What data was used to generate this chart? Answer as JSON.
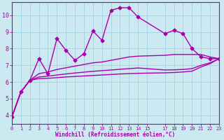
{
  "background_color": "#cce8f0",
  "grid_color": "#99cce0",
  "line_color": "#aa00aa",
  "xlabel": "Windchill (Refroidissement éolien,°C)",
  "xlabel_color": "#aa00aa",
  "tick_color": "#aa00aa",
  "xlim": [
    0,
    23
  ],
  "ylim": [
    3.5,
    10.8
  ],
  "yticks": [
    4,
    5,
    6,
    7,
    8,
    9,
    10
  ],
  "xtick_positions": [
    0,
    1,
    2,
    3,
    4,
    5,
    6,
    7,
    8,
    9,
    10,
    11,
    12,
    13,
    14,
    15,
    17,
    18,
    19,
    20,
    21,
    22,
    23
  ],
  "xtick_labels": [
    "0",
    "1",
    "2",
    "3",
    "4",
    "5",
    "6",
    "7",
    "8",
    "9",
    "10",
    "11",
    "12",
    "13",
    "14",
    "15",
    "17",
    "18",
    "19",
    "20",
    "21",
    "22",
    "23"
  ],
  "series_main": {
    "x": [
      0,
      1,
      2,
      3,
      4,
      5,
      6,
      7,
      8,
      9,
      10,
      11,
      12,
      13,
      14,
      17,
      18,
      19,
      20,
      21,
      22,
      23
    ],
    "y": [
      3.9,
      5.4,
      6.1,
      7.4,
      6.5,
      8.6,
      7.9,
      7.3,
      7.7,
      9.05,
      8.5,
      10.3,
      10.45,
      10.45,
      9.9,
      8.9,
      9.1,
      8.9,
      8.0,
      7.5,
      7.4,
      7.4
    ],
    "marker": "D",
    "markersize": 2.5,
    "linewidth": 1.0
  },
  "series_smooth": [
    {
      "x": [
        0,
        1,
        2,
        3,
        4,
        5,
        6,
        7,
        8,
        9,
        10,
        11,
        12,
        13,
        14,
        17,
        18,
        19,
        20,
        21,
        22,
        23
      ],
      "y": [
        3.9,
        5.4,
        6.1,
        6.5,
        6.6,
        6.75,
        6.85,
        6.95,
        7.05,
        7.15,
        7.2,
        7.3,
        7.4,
        7.5,
        7.55,
        7.6,
        7.65,
        7.65,
        7.65,
        7.65,
        7.5,
        7.4
      ],
      "linewidth": 1.0
    },
    {
      "x": [
        0,
        1,
        2,
        3,
        4,
        5,
        6,
        7,
        8,
        9,
        10,
        11,
        12,
        13,
        14,
        17,
        18,
        19,
        20,
        21,
        22,
        23
      ],
      "y": [
        3.9,
        5.4,
        6.1,
        6.3,
        6.35,
        6.42,
        6.48,
        6.54,
        6.59,
        6.64,
        6.68,
        6.72,
        6.76,
        6.8,
        6.84,
        6.72,
        6.73,
        6.75,
        6.8,
        7.0,
        7.15,
        7.4
      ],
      "linewidth": 1.0
    },
    {
      "x": [
        0,
        1,
        2,
        3,
        4,
        5,
        6,
        7,
        8,
        9,
        10,
        11,
        12,
        13,
        14,
        17,
        18,
        19,
        20,
        21,
        22,
        23
      ],
      "y": [
        3.9,
        5.4,
        6.1,
        6.2,
        6.22,
        6.26,
        6.3,
        6.33,
        6.36,
        6.39,
        6.42,
        6.45,
        6.48,
        6.5,
        6.52,
        6.55,
        6.57,
        6.6,
        6.65,
        6.9,
        7.1,
        7.4
      ],
      "linewidth": 1.0
    }
  ]
}
